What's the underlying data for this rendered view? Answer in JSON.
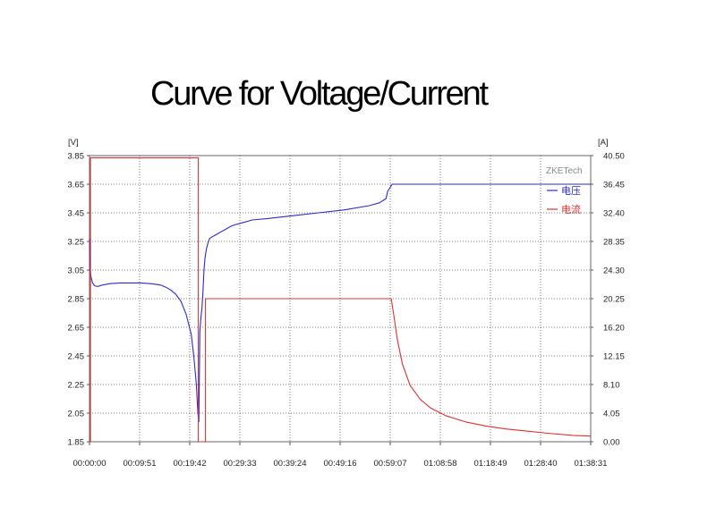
{
  "title": "Curve for Voltage/Current",
  "chart_data": {
    "type": "line",
    "title": "Curve for Voltage/Current",
    "y_left_unit": "[V]",
    "y_right_unit": "[A]",
    "y_left_ticks": [
      "3.85",
      "3.65",
      "3.45",
      "3.25",
      "3.05",
      "2.85",
      "2.65",
      "2.45",
      "2.25",
      "2.05",
      "1.85"
    ],
    "y_right_ticks": [
      "40.50",
      "36.45",
      "32.40",
      "28.35",
      "24.30",
      "20.25",
      "16.20",
      "12.15",
      "8.10",
      "4.05",
      "0.00"
    ],
    "x_ticks": [
      "00:00:00",
      "00:09:51",
      "00:19:42",
      "00:29:33",
      "00:39:24",
      "00:49:16",
      "00:59:07",
      "01:08:58",
      "01:18:49",
      "01:28:40",
      "01:38:31"
    ],
    "ylim_left": [
      1.85,
      3.85
    ],
    "ylim_right": [
      0,
      40.5
    ],
    "xlim_min": [
      0,
      98.52
    ],
    "grid": true,
    "legend": "top-right",
    "brand": "ZKETech",
    "series": [
      {
        "name": "电压",
        "axis": "left",
        "color": "#2a2ad2",
        "x_min": [
          0,
          0.1,
          0.3,
          0.6,
          1.0,
          1.6,
          2.5,
          4,
          6,
          8,
          10,
          12,
          14,
          15,
          16,
          17,
          18,
          19,
          20,
          20.5,
          21,
          21.3,
          21.5,
          21.7,
          21.9,
          22.1,
          22.3,
          22.5,
          22.7,
          23,
          23.3,
          23.6,
          24,
          24.5,
          25,
          26,
          27,
          28,
          30,
          32,
          35,
          40,
          45,
          50,
          55,
          57,
          58.3,
          58.6,
          59.5,
          65,
          70,
          80,
          90,
          98.5
        ],
        "y": [
          3.27,
          3.06,
          3.0,
          2.96,
          2.94,
          2.935,
          2.945,
          2.955,
          2.96,
          2.96,
          2.96,
          2.955,
          2.945,
          2.93,
          2.91,
          2.88,
          2.83,
          2.74,
          2.6,
          2.45,
          2.25,
          2.05,
          1.99,
          2.62,
          2.72,
          2.78,
          2.9,
          3.05,
          3.13,
          3.2,
          3.24,
          3.27,
          3.28,
          3.29,
          3.3,
          3.32,
          3.34,
          3.36,
          3.38,
          3.4,
          3.41,
          3.43,
          3.45,
          3.47,
          3.5,
          3.52,
          3.55,
          3.6,
          3.65,
          3.65,
          3.65,
          3.65,
          3.65,
          3.65
        ]
      },
      {
        "name": "电流",
        "axis": "right",
        "color": "#e03030",
        "x_min": [
          0,
          0.2,
          0.2,
          21.4,
          21.4,
          22.2,
          22.2,
          22.8,
          22.8,
          59.3,
          59.8,
          60.5,
          61.5,
          63,
          65,
          67,
          70,
          74,
          78,
          82,
          86,
          90,
          95,
          98.5
        ],
        "y": [
          0,
          0,
          40.2,
          40.2,
          0,
          0,
          0,
          0,
          20.25,
          20.25,
          18.0,
          14.5,
          11.0,
          8.0,
          6.0,
          4.8,
          3.7,
          2.8,
          2.2,
          1.8,
          1.5,
          1.2,
          0.9,
          0.8
        ]
      }
    ]
  }
}
